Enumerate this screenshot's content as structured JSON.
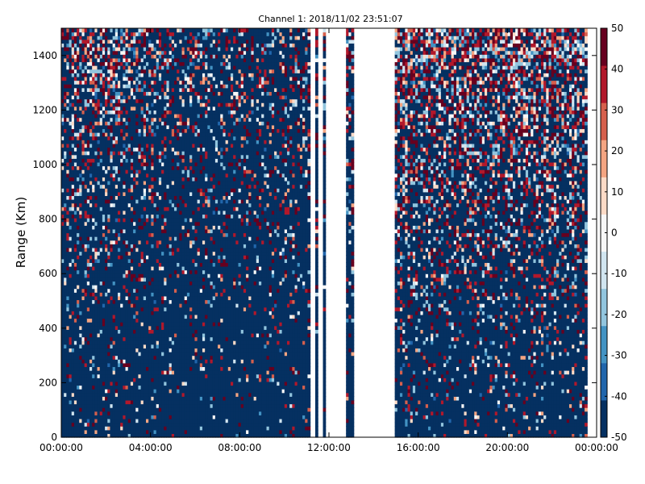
{
  "chart_data": {
    "type": "heatmap",
    "title": "Channel 1: 2018/11/02 23:51:07",
    "xlabel": "",
    "ylabel": "Range (Km)",
    "x_ticks": [
      "00:00:00",
      "04:00:00",
      "08:00:00",
      "12:00:00",
      "16:00:00",
      "20:00:00",
      "00:00:00"
    ],
    "x_range_hours": [
      0,
      24
    ],
    "y_ticks": [
      0,
      200,
      400,
      600,
      800,
      1000,
      1200,
      1400
    ],
    "ylim": [
      0,
      1500
    ],
    "colorbar": {
      "ticks": [
        50,
        40,
        30,
        20,
        10,
        0,
        -10,
        -20,
        -30,
        -40,
        -50
      ],
      "range": [
        -50,
        50
      ],
      "colormap": "RdBu_r",
      "colors": [
        "#053061",
        "#2166ac",
        "#4393c3",
        "#92c5de",
        "#d1e5f0",
        "#f7f7f7",
        "#fddbc7",
        "#f4a582",
        "#d6604d",
        "#b2182b",
        "#67001f"
      ]
    },
    "data_gaps_hours": [
      [
        11.15,
        11.35
      ],
      [
        11.55,
        11.75
      ],
      [
        11.85,
        12.8
      ],
      [
        13.1,
        14.9
      ]
    ],
    "data_columns_hours": [
      [
        0,
        11.15
      ],
      [
        11.35,
        11.55
      ],
      [
        11.75,
        11.85
      ],
      [
        12.8,
        13.1
      ],
      [
        14.9,
        23.6
      ]
    ],
    "grid": false
  }
}
